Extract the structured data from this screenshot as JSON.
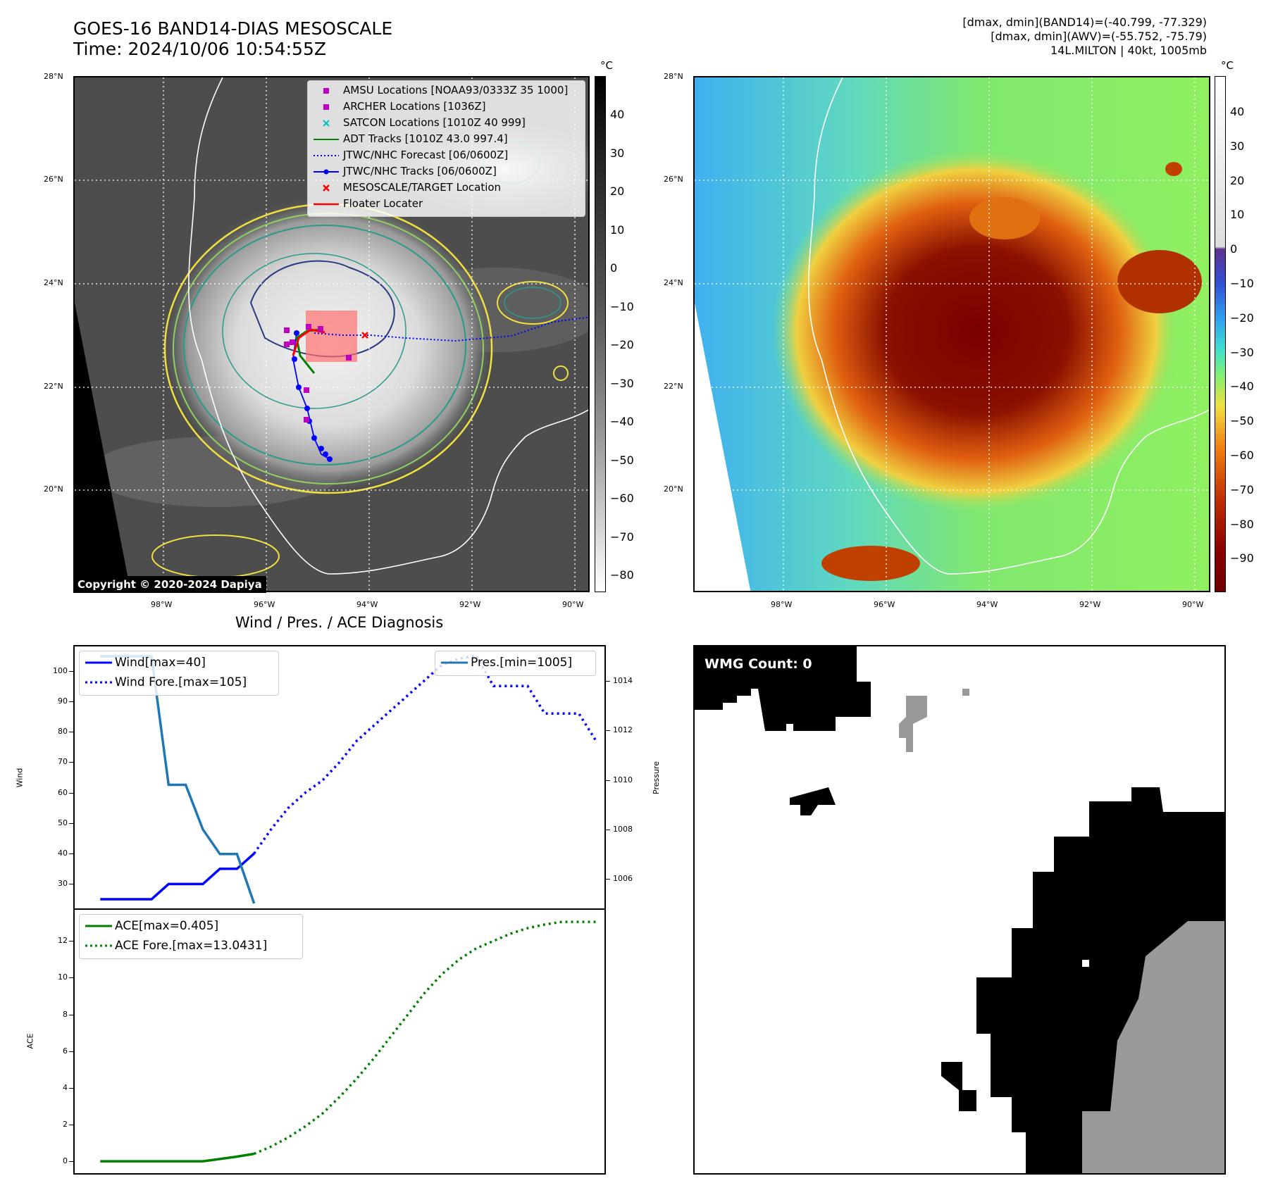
{
  "header": {
    "title_line1": "GOES-16 BAND14-DIAS MESOSCALE",
    "title_line2": "Time: 2024/10/06 10:54:55Z",
    "info_line1": "[dmax, dmin](BAND14)=(-40.799, -77.329)",
    "info_line2": "[dmax, dmin](AWV)=(-55.752, -75.79)",
    "info_line3": "14L.MILTON | 40kt, 1005mb"
  },
  "map_axes": {
    "lat_labels": [
      "28°N",
      "26°N",
      "24°N",
      "22°N",
      "20°N"
    ],
    "lon_labels": [
      "98°W",
      "96°W",
      "94°W",
      "92°W",
      "90°W"
    ]
  },
  "colorbar_left": {
    "unit": "°C",
    "ticks": [
      "40",
      "30",
      "20",
      "10",
      "0",
      "−10",
      "−20",
      "−30",
      "−40",
      "−50",
      "−60",
      "−70",
      "−80"
    ]
  },
  "colorbar_right": {
    "unit": "°C",
    "ticks": [
      "40",
      "30",
      "20",
      "10",
      "0",
      "−10",
      "−20",
      "−30",
      "−40",
      "−50",
      "−60",
      "−70",
      "−80",
      "−90"
    ]
  },
  "legend_map": {
    "items": [
      {
        "label": "AMSU Locations [NOAA93/0333Z 35 1000]",
        "color": "#c000c0",
        "marker": "square"
      },
      {
        "label": "ARCHER Locations [1036Z]",
        "color": "#c000c0",
        "marker": "square"
      },
      {
        "label": "SATCON Locations [1010Z 40 999]",
        "color": "#00c0c0",
        "marker": "x"
      },
      {
        "label": "ADT Tracks [1010Z 43.0 997.4]",
        "color": "#008000",
        "marker": "line"
      },
      {
        "label": "JTWC/NHC Forecast [06/0600Z]",
        "color": "#0000ff",
        "marker": "dotted"
      },
      {
        "label": "JTWC/NHC Tracks [06/0600Z]",
        "color": "#0000ff",
        "marker": "line-dot"
      },
      {
        "label": "MESOSCALE/TARGET Location",
        "color": "#ff0000",
        "marker": "x"
      },
      {
        "label": "Floater Locater",
        "color": "#ff0000",
        "marker": "line"
      }
    ]
  },
  "copyright": "Copyright © 2020-2024 Dapiya",
  "diagnosis": {
    "title": "Wind / Pres. / ACE Diagnosis",
    "wind_ylabel": "Wind",
    "pressure_ylabel": "Pressure",
    "ace_ylabel": "ACE",
    "legend_wind": "Wind[max=40]",
    "legend_wind_fore": "Wind Fore.[max=105]",
    "legend_pres": "Pres.[min=1005]",
    "legend_ace": "ACE[max=0.405]",
    "legend_ace_fore": "ACE Fore.[max=13.0431]"
  },
  "wmg": {
    "count_label": "WMG Count: 0"
  },
  "chart_data": [
    {
      "type": "line",
      "xlim": [
        0,
        30
      ],
      "ylim": [
        22,
        108
      ],
      "y2lim": [
        1004.8,
        1015.4
      ],
      "yticks": [
        30,
        40,
        50,
        60,
        70,
        80,
        90,
        100
      ],
      "y2ticks": [
        1006,
        1008,
        1010,
        1012,
        1014
      ],
      "series": [
        {
          "name": "Wind[max=40]",
          "color": "#0000ff",
          "style": "solid",
          "axis": "left",
          "x": [
            1,
            2,
            3,
            4,
            5,
            6,
            7,
            8,
            9,
            10
          ],
          "y": [
            25,
            25,
            25,
            25,
            30,
            30,
            30,
            35,
            35,
            40
          ]
        },
        {
          "name": "Wind Fore.[max=105]",
          "color": "#0000ff",
          "style": "dotted",
          "axis": "left",
          "x": [
            10,
            11,
            12,
            13,
            14,
            15,
            16,
            17,
            18,
            19,
            20,
            21,
            22,
            23,
            24,
            25,
            26,
            27,
            28,
            29,
            30
          ],
          "y": [
            40,
            48,
            55,
            60,
            64,
            70,
            77,
            82,
            87,
            92,
            97,
            102,
            104,
            105,
            95,
            95,
            95,
            86,
            86,
            86,
            77
          ]
        },
        {
          "name": "Pres.[min=1005]",
          "color": "#1f77b4",
          "style": "solid",
          "axis": "right",
          "x": [
            1,
            2,
            3,
            4,
            5,
            6,
            7,
            8,
            9,
            10
          ],
          "y": [
            1015,
            1015,
            1015,
            1015,
            1009.8,
            1009.8,
            1008.0,
            1007.0,
            1007.0,
            1005.0
          ]
        }
      ]
    },
    {
      "type": "line",
      "xlim": [
        0,
        30
      ],
      "ylim": [
        -0.65,
        13.7
      ],
      "yticks": [
        0,
        2,
        4,
        6,
        8,
        10,
        12
      ],
      "series": [
        {
          "name": "ACE[max=0.405]",
          "color": "#008000",
          "style": "solid",
          "x": [
            1,
            2,
            3,
            4,
            5,
            6,
            7,
            8,
            9,
            10
          ],
          "y": [
            0,
            0,
            0,
            0,
            0,
            0,
            0,
            0.12,
            0.25,
            0.405
          ]
        },
        {
          "name": "ACE Fore.[max=13.0431]",
          "color": "#008000",
          "style": "dotted",
          "x": [
            10,
            11,
            12,
            13,
            14,
            15,
            16,
            17,
            18,
            19,
            20,
            21,
            22,
            23,
            24,
            25,
            26,
            27,
            28,
            29,
            30
          ],
          "y": [
            0.405,
            0.8,
            1.3,
            1.9,
            2.6,
            3.5,
            4.5,
            5.6,
            6.8,
            8.0,
            9.2,
            10.2,
            11.0,
            11.6,
            12.0,
            12.4,
            12.7,
            12.9,
            13.0431,
            13.0431,
            13.0431
          ]
        }
      ]
    }
  ]
}
